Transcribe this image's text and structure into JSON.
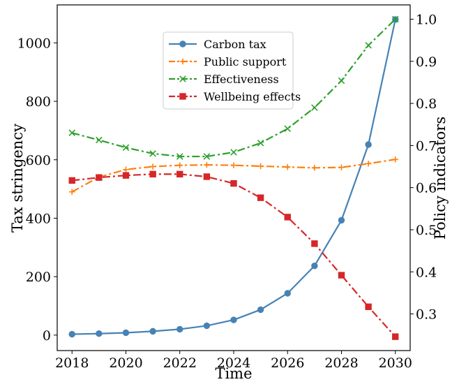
{
  "chart_data": {
    "type": "line",
    "xlabel": "Time",
    "ylabel_left": "Tax stringency",
    "ylabel_right": "Policy indicators",
    "x": [
      2018,
      2019,
      2020,
      2021,
      2022,
      2023,
      2024,
      2025,
      2026,
      2027,
      2028,
      2029,
      2030
    ],
    "x_ticks": [
      2018,
      2020,
      2022,
      2024,
      2026,
      2028,
      2030
    ],
    "y_left_ticks": [
      0,
      200,
      400,
      600,
      800,
      1000
    ],
    "y_right_ticks": [
      0.3,
      0.4,
      0.5,
      0.6,
      0.7,
      0.8,
      0.9,
      1.0
    ],
    "x_tick_labels": [
      "2018",
      "2020",
      "2022",
      "2024",
      "2026",
      "2028",
      "2030"
    ],
    "y_left_tick_labels": [
      "0",
      "200",
      "400",
      "600",
      "800",
      "1000"
    ],
    "y_right_tick_labels": [
      "0.3",
      "0.4",
      "0.5",
      "0.6",
      "0.7",
      "0.8",
      "0.9",
      "1.0"
    ],
    "xlim": [
      2017.45,
      2030.55
    ],
    "ylim_left": [
      -53,
      1130
    ],
    "ylim_right": [
      0.213,
      1.034
    ],
    "grid": false,
    "legend_position": "upper-center",
    "series": [
      {
        "name": "Carbon tax",
        "axis": "left",
        "color": "#4682b4",
        "linestyle": "solid",
        "marker": "circle",
        "values": [
          3,
          5,
          8,
          13,
          20,
          32,
          52,
          87,
          143,
          237,
          393,
          652,
          1080
        ]
      },
      {
        "name": "Public support",
        "axis": "right",
        "color": "#ff7f0e",
        "linestyle": "dashdot",
        "marker": "plus",
        "values": [
          0.59,
          0.625,
          0.643,
          0.65,
          0.653,
          0.654,
          0.653,
          0.651,
          0.649,
          0.647,
          0.648,
          0.657,
          0.667
        ]
      },
      {
        "name": "Effectiveness",
        "axis": "right",
        "color": "#2ca02c",
        "linestyle": "dashdot",
        "marker": "x",
        "values": [
          0.73,
          0.713,
          0.695,
          0.681,
          0.674,
          0.674,
          0.684,
          0.706,
          0.74,
          0.79,
          0.854,
          0.938,
          1.0
        ]
      },
      {
        "name": "Wellbeing effects",
        "axis": "right",
        "color": "#d62728",
        "linestyle": "dashdot",
        "marker": "square",
        "values": [
          0.617,
          0.624,
          0.629,
          0.632,
          0.632,
          0.626,
          0.61,
          0.576,
          0.53,
          0.467,
          0.392,
          0.317,
          0.246
        ]
      }
    ]
  }
}
